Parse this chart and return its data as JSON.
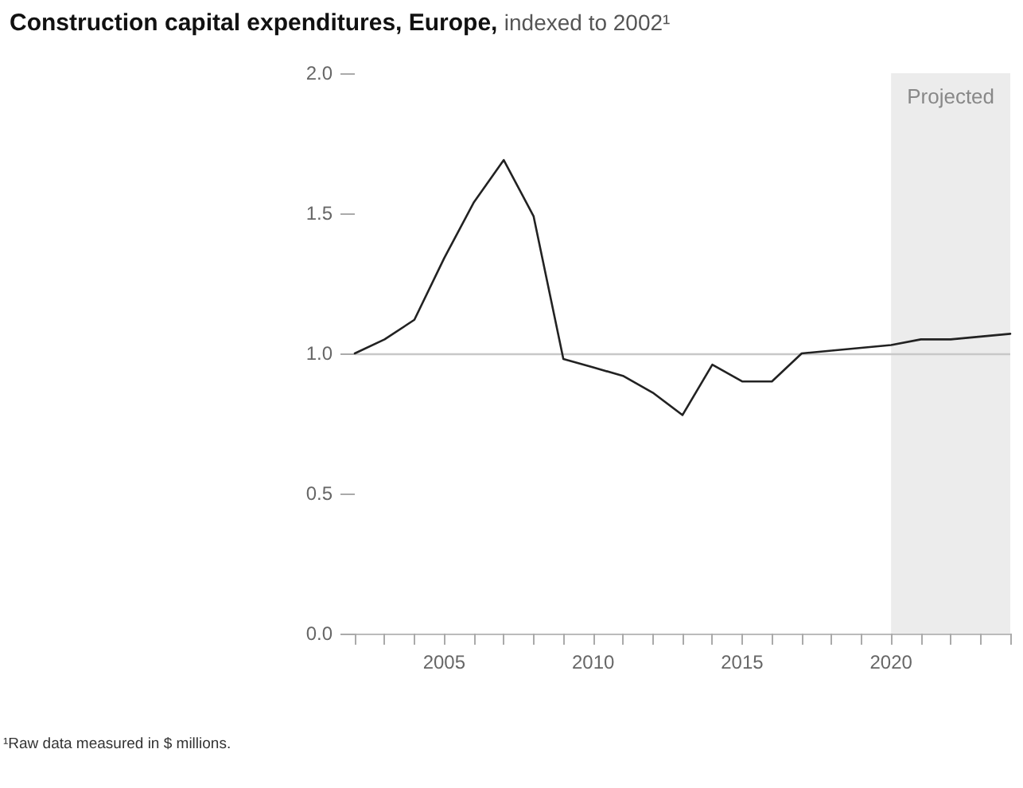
{
  "chart_data": {
    "type": "line",
    "title": "Construction capital expenditures, Europe,",
    "subtitle": "indexed to 2002¹",
    "annotations": [
      "¹Raw data measured in $ millions."
    ],
    "x": [
      2002,
      2003,
      2004,
      2005,
      2006,
      2007,
      2008,
      2009,
      2010,
      2011,
      2012,
      2013,
      2014,
      2015,
      2016,
      2017,
      2018,
      2019,
      2020,
      2021,
      2022,
      2023,
      2024
    ],
    "series": [
      {
        "color": "#222222",
        "values": [
          1.0,
          1.05,
          1.12,
          1.34,
          1.54,
          1.69,
          1.49,
          0.98,
          0.95,
          0.92,
          0.86,
          0.78,
          0.96,
          0.9,
          0.9,
          1.0,
          1.01,
          1.02,
          1.03,
          1.05,
          1.05,
          1.06,
          1.07
        ]
      }
    ],
    "xlim": [
      2002,
      2024
    ],
    "xticks": [
      {
        "value": 2002,
        "label": null
      },
      {
        "value": 2003,
        "label": null
      },
      {
        "value": 2004,
        "label": null
      },
      2005,
      {
        "value": 2006,
        "label": null
      },
      {
        "value": 2007,
        "label": null
      },
      {
        "value": 2008,
        "label": null
      },
      {
        "value": 2009,
        "label": null
      },
      2010,
      {
        "value": 2011,
        "label": null
      },
      {
        "value": 2012,
        "label": null
      },
      {
        "value": 2013,
        "label": null
      },
      {
        "value": 2014,
        "label": null
      },
      2015,
      {
        "value": 2016,
        "label": null
      },
      {
        "value": 2017,
        "label": null
      },
      {
        "value": 2018,
        "label": null
      },
      {
        "value": 2019,
        "label": null
      },
      2020,
      {
        "value": 2021,
        "label": null
      },
      {
        "value": 2022,
        "label": null
      },
      {
        "value": 2023,
        "label": null
      },
      {
        "value": 2024,
        "label": null
      }
    ],
    "ylim": [
      0,
      2
    ],
    "yticks": [
      {
        "value": 0,
        "label": "0.0"
      },
      0.5,
      {
        "value": 1,
        "label": "1.0"
      },
      1.5,
      {
        "value": 2,
        "label": "2.0"
      }
    ],
    "ref_lines": [
      {
        "axis": "y",
        "value": 1,
        "color": "#c8c8c8"
      }
    ],
    "bands": [
      {
        "axis": "x",
        "from": 2020,
        "to": 2024,
        "label": "Projected",
        "color": "#ececec"
      }
    ],
    "grid": false,
    "marker": "none",
    "line_style": "solid"
  }
}
